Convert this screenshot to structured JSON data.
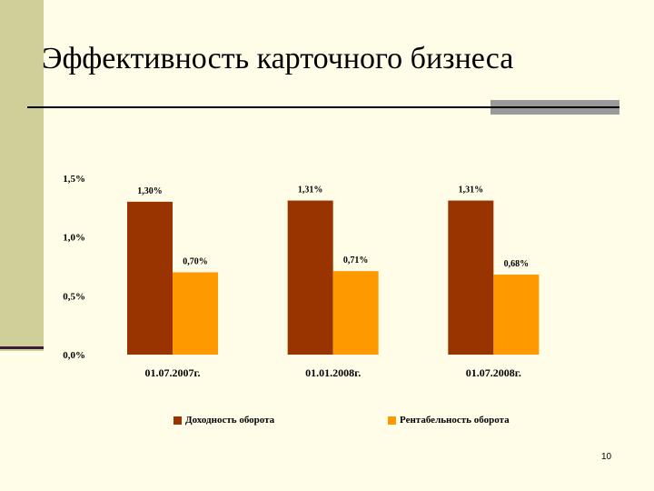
{
  "slide": {
    "title": "Эффективность карточного бизнеса",
    "page_number": "10"
  },
  "colors": {
    "background": "#fffde8",
    "sidebar": "#cfcf99",
    "series_1": "#993300",
    "series_2": "#ff9900"
  },
  "chart_data": {
    "type": "bar",
    "title": "",
    "xlabel": "",
    "ylabel": "",
    "categories": [
      "01.07.2007г.",
      "01.01.2008г.",
      "01.07.2008г."
    ],
    "series": [
      {
        "name": "Доходность оборота",
        "values": [
          1.3,
          1.31,
          1.31
        ],
        "labels": [
          "1,30%",
          "1,31%",
          "1,31%"
        ],
        "color": "#993300"
      },
      {
        "name": "Рентабельность оборота",
        "values": [
          0.7,
          0.71,
          0.68
        ],
        "labels": [
          "0,70%",
          "0,71%",
          "0,68%"
        ],
        "color": "#ff9900"
      }
    ],
    "ylim": [
      0,
      1.5
    ],
    "yticks": [
      {
        "value": 0.0,
        "label": "0,0%"
      },
      {
        "value": 0.5,
        "label": "0,5%"
      },
      {
        "value": 1.0,
        "label": "1,0%"
      },
      {
        "value": 1.5,
        "label": "1,5%"
      }
    ],
    "grid": false,
    "legend": "bottom"
  }
}
